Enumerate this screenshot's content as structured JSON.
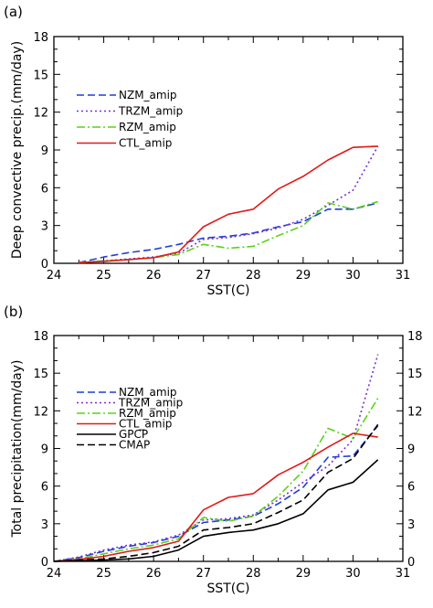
{
  "chart_data": [
    {
      "panel_label": "(a)",
      "type": "line",
      "xlabel": "SST(C)",
      "ylabel": "Deep convective precip.(mm/day)",
      "xlim": [
        24,
        31
      ],
      "ylim": [
        0,
        18
      ],
      "x_ticks": [
        "24",
        "25",
        "26",
        "27",
        "28",
        "29",
        "30",
        "31"
      ],
      "y_ticks": [
        "0",
        "3",
        "6",
        "9",
        "12",
        "15",
        "18"
      ],
      "right_axis_labels": false,
      "legend_position": "upper-left",
      "series": [
        {
          "name": "NZM_amip",
          "color": "#1f3fd6",
          "dash": "8,4",
          "x": [
            24.5,
            25,
            25.5,
            26,
            26.5,
            27,
            27.5,
            28,
            28.5,
            29,
            29.5,
            30,
            30.5
          ],
          "y": [
            0.05,
            0.5,
            0.85,
            1.1,
            1.5,
            2.0,
            2.15,
            2.4,
            2.9,
            3.3,
            4.3,
            4.3,
            4.8
          ]
        },
        {
          "name": "TRZM_amip",
          "color": "#7a2fd6",
          "dash": "2,3",
          "x": [
            24.5,
            25,
            25.5,
            26,
            26.5,
            27,
            27.5,
            28,
            28.5,
            29,
            29.5,
            30,
            30.5
          ],
          "y": [
            0.05,
            0.2,
            0.35,
            0.5,
            0.8,
            1.9,
            2.05,
            2.35,
            2.8,
            3.5,
            4.6,
            5.8,
            9.3
          ]
        },
        {
          "name": "RZM_amip",
          "color": "#5ad21a",
          "dash": "9,3,2,3",
          "x": [
            24.5,
            25,
            25.5,
            26,
            26.5,
            27,
            27.5,
            28,
            28.5,
            29,
            29.5,
            30,
            30.5
          ],
          "y": [
            0.05,
            0.2,
            0.3,
            0.45,
            0.7,
            1.5,
            1.2,
            1.35,
            2.2,
            3.0,
            4.8,
            4.3,
            4.9
          ]
        },
        {
          "name": "CTL_amip",
          "color": "#e01a1a",
          "dash": "",
          "x": [
            24.5,
            25,
            25.5,
            26,
            26.5,
            27,
            27.5,
            28,
            28.5,
            29,
            29.5,
            30,
            30.5
          ],
          "y": [
            0.05,
            0.15,
            0.3,
            0.45,
            0.9,
            2.9,
            3.9,
            4.3,
            5.9,
            6.9,
            8.2,
            9.2,
            9.3
          ]
        }
      ]
    },
    {
      "panel_label": "(b)",
      "type": "line",
      "xlabel": "SST(C)",
      "ylabel": "Total precipitation(mm/day)",
      "xlim": [
        24,
        31
      ],
      "ylim": [
        0,
        18
      ],
      "x_ticks": [
        "24",
        "25",
        "26",
        "27",
        "28",
        "29",
        "30",
        "31"
      ],
      "y_ticks": [
        "0",
        "3",
        "6",
        "9",
        "12",
        "15",
        "18"
      ],
      "right_axis_labels": true,
      "legend_position": "upper-left",
      "series": [
        {
          "name": "NZM_amip",
          "color": "#1f3fd6",
          "dash": "8,4",
          "x": [
            24,
            24.5,
            25,
            25.5,
            26,
            26.5,
            27,
            27.5,
            28,
            28.5,
            29,
            29.5,
            30,
            30.5
          ],
          "y": [
            0,
            0.3,
            0.8,
            1.2,
            1.5,
            2.0,
            3.1,
            3.3,
            3.6,
            4.6,
            5.9,
            8.3,
            8.4,
            10.8
          ]
        },
        {
          "name": "TRZM_amip",
          "color": "#7a2fd6",
          "dash": "2,3",
          "x": [
            24,
            24.5,
            25,
            25.5,
            26,
            26.5,
            27,
            27.5,
            28,
            28.5,
            29,
            29.5,
            30,
            30.5
          ],
          "y": [
            0,
            0.35,
            0.9,
            1.3,
            1.55,
            2.1,
            3.3,
            3.4,
            3.7,
            4.9,
            6.3,
            7.6,
            9.7,
            16.5
          ]
        },
        {
          "name": "RZM_amip",
          "color": "#5ad21a",
          "dash": "9,3,2,3",
          "x": [
            24,
            24.5,
            25,
            25.5,
            26,
            26.5,
            27,
            27.5,
            28,
            28.5,
            29,
            29.5,
            30,
            30.5
          ],
          "y": [
            0,
            0.2,
            0.6,
            1.0,
            1.3,
            1.8,
            3.5,
            3.2,
            3.6,
            5.2,
            7.2,
            10.6,
            9.8,
            13.0
          ]
        },
        {
          "name": "CTL_amip",
          "color": "#e01a1a",
          "dash": "",
          "x": [
            24,
            24.5,
            25,
            25.5,
            26,
            26.5,
            27,
            27.5,
            28,
            28.5,
            29,
            29.5,
            30,
            30.5
          ],
          "y": [
            0,
            0.15,
            0.4,
            0.8,
            1.1,
            1.6,
            4.1,
            5.1,
            5.4,
            6.9,
            7.9,
            9.1,
            10.2,
            9.9
          ]
        },
        {
          "name": "GPCP",
          "color": "#000000",
          "dash": "",
          "x": [
            24,
            24.5,
            25,
            25.5,
            26,
            26.5,
            27,
            27.5,
            28,
            28.5,
            29,
            29.5,
            30,
            30.5
          ],
          "y": [
            0,
            0.05,
            0.1,
            0.2,
            0.4,
            0.9,
            2.0,
            2.3,
            2.5,
            3.0,
            3.8,
            5.7,
            6.3,
            8.1
          ]
        },
        {
          "name": "CMAP",
          "color": "#000000",
          "dash": "8,4",
          "x": [
            24,
            24.5,
            25,
            25.5,
            26,
            26.5,
            27,
            27.5,
            28,
            28.5,
            29,
            29.5,
            30,
            30.5
          ],
          "y": [
            0,
            0.1,
            0.2,
            0.4,
            0.7,
            1.2,
            2.5,
            2.7,
            3.0,
            3.9,
            4.9,
            7.1,
            8.2,
            10.9
          ]
        }
      ]
    }
  ]
}
